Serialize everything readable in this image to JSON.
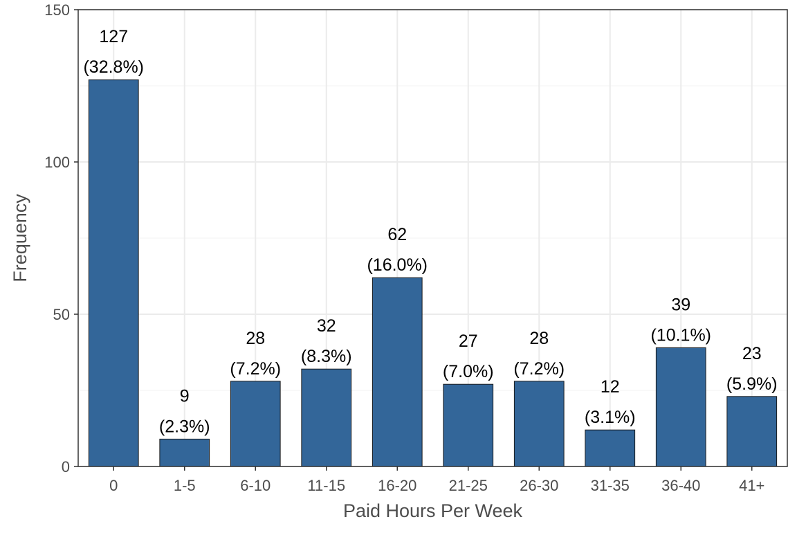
{
  "chart_data": {
    "type": "bar",
    "xlabel": "Paid Hours Per Week",
    "ylabel": "Frequency",
    "categories": [
      "0",
      "1-5",
      "6-10",
      "11-15",
      "16-20",
      "21-25",
      "26-30",
      "31-35",
      "36-40",
      "41+"
    ],
    "values": [
      127,
      9,
      28,
      32,
      62,
      27,
      28,
      12,
      39,
      23
    ],
    "percent_labels": [
      "(32.8%)",
      "(2.3%)",
      "(7.2%)",
      "(8.3%)",
      "(16.0%)",
      "(7.0%)",
      "(7.2%)",
      "(3.1%)",
      "(10.1%)",
      "(5.9%)"
    ],
    "count_labels": [
      "127",
      "9",
      "28",
      "32",
      "62",
      "27",
      "28",
      "12",
      "39",
      "23"
    ],
    "y_ticks": [
      0,
      50,
      100,
      150
    ],
    "y_tick_labels": [
      "0",
      "50",
      "100",
      "150"
    ],
    "ylim": [
      0,
      150
    ],
    "grid": true,
    "legend": "none",
    "colors": {
      "bar_fill": "#336699",
      "bar_stroke": "#1a1a1a",
      "grid_major": "#ebebeb",
      "grid_minor": "#f5f5f5",
      "panel_border": "#333333",
      "axis_text": "#4d4d4d"
    }
  }
}
